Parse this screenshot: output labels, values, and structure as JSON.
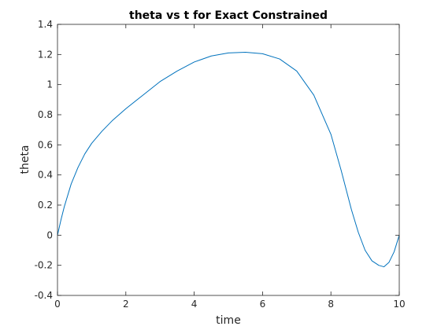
{
  "chart_data": {
    "type": "line",
    "title": "theta vs t for Exact Constrained",
    "xlabel": "time",
    "ylabel": "theta",
    "xlim": [
      0,
      10
    ],
    "ylim": [
      -0.4,
      1.4
    ],
    "x_ticks": [
      "0",
      "2",
      "4",
      "6",
      "8",
      "10"
    ],
    "y_ticks": [
      "-0.4",
      "-0.2",
      "0",
      "0.2",
      "0.4",
      "0.6",
      "0.8",
      "1",
      "1.2",
      "1.4"
    ],
    "grid": false,
    "line_color": "#0072BD",
    "axis_color": "#262626",
    "series": [
      {
        "x": [
          0,
          0.1,
          0.2,
          0.4,
          0.6,
          0.8,
          1.0,
          1.3,
          1.6,
          2.0,
          2.5,
          3.0,
          3.5,
          4.0,
          4.5,
          5.0,
          5.5,
          6.0,
          6.5,
          7.0,
          7.5,
          8.0,
          8.3,
          8.6,
          8.8,
          9.0,
          9.2,
          9.4,
          9.55,
          9.7,
          9.85,
          10.0
        ],
        "y": [
          0,
          0.1,
          0.19,
          0.34,
          0.45,
          0.54,
          0.61,
          0.69,
          0.76,
          0.84,
          0.93,
          1.02,
          1.09,
          1.15,
          1.19,
          1.21,
          1.215,
          1.205,
          1.17,
          1.09,
          0.93,
          0.67,
          0.43,
          0.17,
          0.02,
          -0.1,
          -0.17,
          -0.2,
          -0.21,
          -0.18,
          -0.11,
          0.0
        ]
      }
    ]
  }
}
